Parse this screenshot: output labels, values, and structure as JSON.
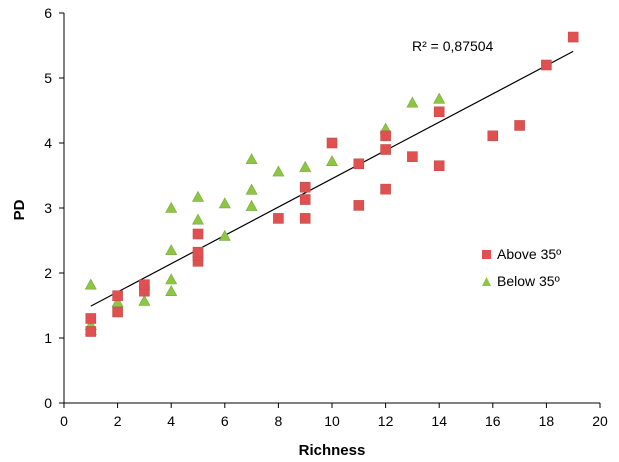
{
  "chart_data": {
    "type": "scatter",
    "title": "",
    "xlabel": "Richness",
    "ylabel": "PD",
    "xlim": [
      0,
      20
    ],
    "ylim": [
      0,
      6
    ],
    "x_ticks": [
      "0",
      "2",
      "4",
      "6",
      "8",
      "10",
      "12",
      "14",
      "16",
      "18",
      "20"
    ],
    "y_ticks": [
      "0",
      "1",
      "2",
      "3",
      "4",
      "5",
      "6"
    ],
    "grid": false,
    "legend_position": "right",
    "annotation": "R² = 0,87504",
    "trendline": {
      "x": [
        1,
        19
      ],
      "y": [
        1.49,
        5.41
      ],
      "color": "#000000"
    },
    "series": [
      {
        "name": "Above 35º",
        "marker": "square",
        "color": "#e05050",
        "points": [
          [
            1,
            1.1
          ],
          [
            1,
            1.3
          ],
          [
            2,
            1.4
          ],
          [
            2,
            1.65
          ],
          [
            3,
            1.72
          ],
          [
            3,
            1.82
          ],
          [
            5,
            2.18
          ],
          [
            5,
            2.27
          ],
          [
            5,
            2.32
          ],
          [
            5,
            2.6
          ],
          [
            8,
            2.84
          ],
          [
            9,
            2.84
          ],
          [
            9,
            3.13
          ],
          [
            9,
            3.32
          ],
          [
            10,
            4.0
          ],
          [
            11,
            3.04
          ],
          [
            11,
            3.68
          ],
          [
            12,
            3.29
          ],
          [
            12,
            3.9
          ],
          [
            12,
            4.11
          ],
          [
            13,
            3.79
          ],
          [
            14,
            3.65
          ],
          [
            14,
            4.48
          ],
          [
            16,
            4.11
          ],
          [
            17,
            4.27
          ],
          [
            18,
            5.2
          ],
          [
            19,
            5.63
          ]
        ]
      },
      {
        "name": "Below 35º",
        "marker": "triangle",
        "color": "#8dc63f",
        "points": [
          [
            1,
            1.12
          ],
          [
            1,
            1.2
          ],
          [
            1,
            1.82
          ],
          [
            2,
            1.55
          ],
          [
            3,
            1.57
          ],
          [
            4,
            1.72
          ],
          [
            4,
            1.9
          ],
          [
            4,
            2.35
          ],
          [
            4,
            3.0
          ],
          [
            5,
            2.82
          ],
          [
            5,
            3.17
          ],
          [
            6,
            2.57
          ],
          [
            6,
            3.07
          ],
          [
            7,
            3.03
          ],
          [
            7,
            3.28
          ],
          [
            7,
            3.75
          ],
          [
            8,
            3.56
          ],
          [
            9,
            3.63
          ],
          [
            10,
            3.72
          ],
          [
            12,
            4.22
          ],
          [
            13,
            4.62
          ],
          [
            14,
            4.68
          ]
        ]
      }
    ]
  }
}
